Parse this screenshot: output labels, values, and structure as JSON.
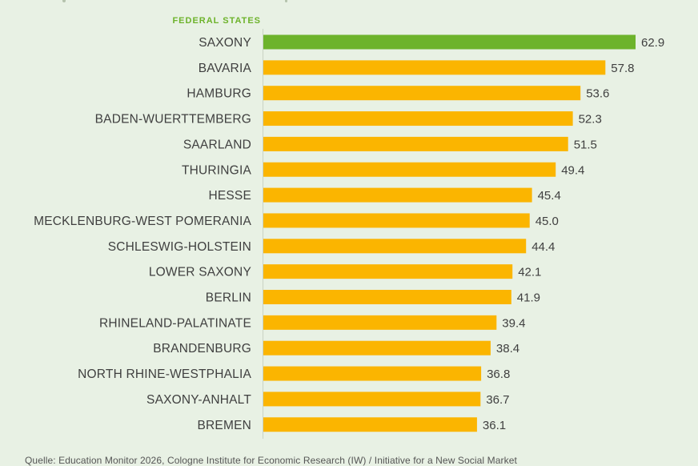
{
  "colors": {
    "background": "#e8f1e4",
    "highlight": "#6db32b",
    "bar": "#fbb500",
    "header": "#6db32b",
    "text": "#3f3f3f"
  },
  "chart_data": {
    "type": "bar",
    "orientation": "horizontal",
    "category_header": "FEDERAL  STATES",
    "categories": [
      "SAXONY",
      "BAVARIA",
      "HAMBURG",
      "BADEN-WUERTTEMBERG",
      "SAARLAND",
      "THURINGIA",
      "HESSE",
      "MECKLENBURG-WEST POMERANIA",
      "SCHLESWIG-HOLSTEIN",
      "LOWER SAXONY",
      "BERLIN",
      "RHINELAND-PALATINATE",
      "BRANDENBURG",
      "NORTH RHINE-WESTPHALIA",
      "SAXONY-ANHALT",
      "BREMEN"
    ],
    "values": [
      62.9,
      57.8,
      53.6,
      52.3,
      51.5,
      49.4,
      45.4,
      45.0,
      44.4,
      42.1,
      41.9,
      39.4,
      38.4,
      36.8,
      36.7,
      36.1
    ],
    "value_labels": [
      "62.9",
      "57.8",
      "53.6",
      "52.3",
      "51.5",
      "49.4",
      "45.4",
      "45.0",
      "44.4",
      "42.1",
      "41.9",
      "39.4",
      "38.4",
      "36.8",
      "36.7",
      "36.1"
    ],
    "highlighted_category": "SAXONY",
    "xlim": [
      0,
      62.9
    ],
    "grid": false,
    "legend": "none"
  },
  "source": "Quelle: Education Monitor 2026, Cologne Institute for Economic Research (IW) / Initiative for a New Social Market"
}
